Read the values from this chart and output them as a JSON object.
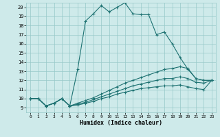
{
  "xlabel": "Humidex (Indice chaleur)",
  "xlim": [
    -0.5,
    23.5
  ],
  "ylim": [
    8.5,
    20.5
  ],
  "xticks": [
    0,
    1,
    2,
    3,
    4,
    5,
    6,
    7,
    8,
    9,
    10,
    11,
    12,
    13,
    14,
    15,
    16,
    17,
    18,
    19,
    20,
    21,
    22,
    23
  ],
  "yticks": [
    9,
    10,
    11,
    12,
    13,
    14,
    15,
    16,
    17,
    18,
    19,
    20
  ],
  "bg_color": "#ceeaea",
  "grid_color": "#96c8c8",
  "line_color": "#1e7272",
  "line1_x": [
    0,
    1,
    2,
    3,
    4,
    5,
    6,
    7,
    8,
    9,
    10,
    11,
    12,
    13,
    14,
    15,
    16,
    17,
    18,
    19,
    20,
    21,
    22,
    23
  ],
  "line1_y": [
    10.0,
    10.0,
    9.2,
    9.5,
    10.0,
    9.2,
    13.2,
    18.5,
    19.3,
    20.2,
    19.5,
    20.0,
    20.5,
    19.3,
    19.2,
    19.2,
    17.0,
    17.3,
    16.0,
    14.5,
    13.2,
    12.2,
    12.0,
    12.0
  ],
  "line2_x": [
    0,
    1,
    2,
    3,
    4,
    5,
    6,
    7,
    8,
    9,
    10,
    11,
    12,
    13,
    14,
    15,
    16,
    17,
    18,
    19,
    20,
    21,
    22,
    23
  ],
  "line2_y": [
    10.0,
    10.0,
    9.2,
    9.5,
    10.0,
    9.2,
    9.5,
    9.8,
    10.1,
    10.5,
    10.9,
    11.3,
    11.7,
    12.0,
    12.3,
    12.6,
    12.9,
    13.2,
    13.3,
    13.5,
    13.3,
    12.2,
    12.0,
    12.0
  ],
  "line3_x": [
    0,
    1,
    2,
    3,
    4,
    5,
    6,
    7,
    8,
    9,
    10,
    11,
    12,
    13,
    14,
    15,
    16,
    17,
    18,
    19,
    20,
    21,
    22,
    23
  ],
  "line3_y": [
    10.0,
    10.0,
    9.2,
    9.5,
    10.0,
    9.2,
    9.4,
    9.6,
    9.9,
    10.2,
    10.5,
    10.8,
    11.1,
    11.4,
    11.6,
    11.8,
    12.0,
    12.2,
    12.2,
    12.4,
    12.2,
    11.8,
    11.7,
    12.0
  ],
  "line4_x": [
    0,
    1,
    2,
    3,
    4,
    5,
    6,
    7,
    8,
    9,
    10,
    11,
    12,
    13,
    14,
    15,
    16,
    17,
    18,
    19,
    20,
    21,
    22,
    23
  ],
  "line4_y": [
    10.0,
    10.0,
    9.2,
    9.5,
    10.0,
    9.2,
    9.3,
    9.5,
    9.7,
    10.0,
    10.2,
    10.5,
    10.7,
    10.9,
    11.1,
    11.2,
    11.3,
    11.4,
    11.4,
    11.5,
    11.3,
    11.1,
    11.0,
    12.0
  ]
}
